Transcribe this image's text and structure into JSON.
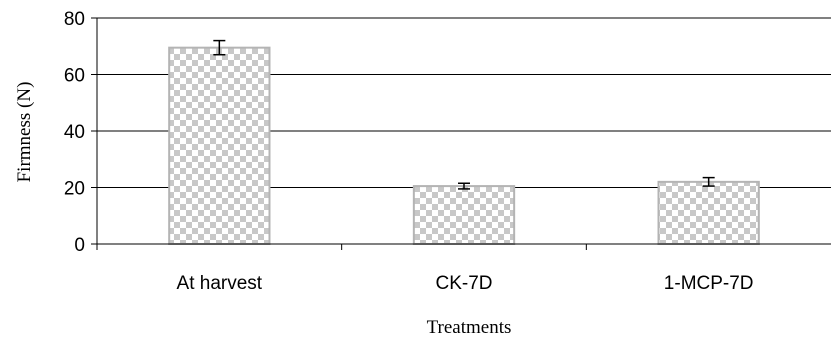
{
  "chart_data": {
    "type": "bar",
    "categories": [
      "At harvest",
      "CK-7D",
      "1-MCP-7D"
    ],
    "values": [
      69.5,
      20.5,
      22.0
    ],
    "errors": [
      2.5,
      1.0,
      1.5
    ],
    "xlabel": "Treatments",
    "ylabel": "Firmness (N)",
    "ylim": [
      0,
      80
    ],
    "yticks": [
      0,
      20,
      40,
      60,
      80
    ],
    "grid": true,
    "bar_fill": "checkerboard",
    "colors": {
      "bar_light": "#ffffff",
      "bar_dark": "#c8c8c8",
      "bar_border": "#b4b4b4",
      "axis": "#000000",
      "grid": "#000000"
    }
  }
}
